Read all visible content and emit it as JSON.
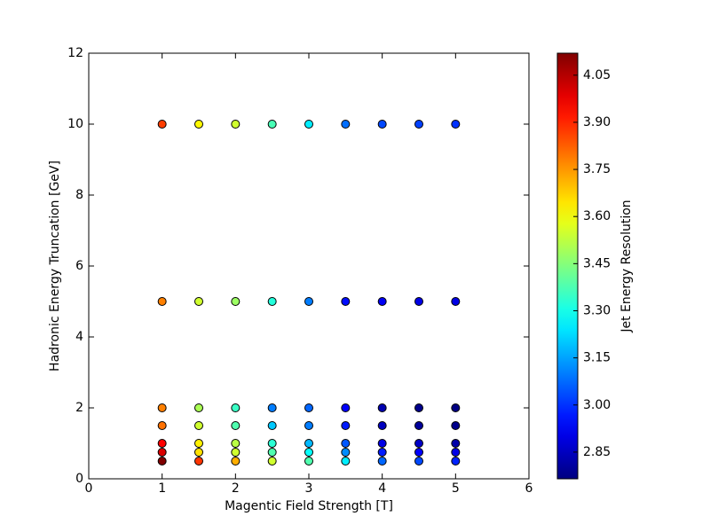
{
  "chart_data": {
    "type": "scatter",
    "xlabel": "Magentic Field Strength [T]",
    "ylabel": "Hadronic Energy Truncation [GeV]",
    "xlim": [
      0,
      6
    ],
    "xticks": [
      0,
      1,
      2,
      3,
      4,
      5,
      6
    ],
    "ylim": [
      0,
      12
    ],
    "yticks": [
      0,
      2,
      4,
      6,
      8,
      10,
      12
    ],
    "colormap": "jet",
    "colorbar": {
      "label": "Jet Energy Resolution",
      "clim": [
        2.765,
        4.12
      ],
      "ticks": [
        2.85,
        {
          "value": 3,
          "label": "3.00"
        },
        3.15,
        {
          "value": 3.3,
          "label": "3.30"
        },
        3.45,
        {
          "value": 3.6,
          "label": "3.60"
        },
        3.75,
        {
          "value": 3.9,
          "label": "3.90"
        },
        4.05
      ]
    },
    "series": [
      {
        "x": [
          1,
          1,
          1,
          1,
          1,
          1,
          1,
          1.5,
          1.5,
          1.5,
          1.5,
          1.5,
          1.5,
          1.5,
          2,
          2,
          2,
          2,
          2,
          2,
          2,
          2.5,
          2.5,
          2.5,
          2.5,
          2.5,
          2.5,
          2.5,
          3,
          3,
          3,
          3,
          3,
          3,
          3,
          3.5,
          3.5,
          3.5,
          3.5,
          3.5,
          3.5,
          3.5,
          4,
          4,
          4,
          4,
          4,
          4,
          4,
          4.5,
          4.5,
          4.5,
          4.5,
          4.5,
          4.5,
          4.5,
          5,
          5,
          5,
          5,
          5,
          5,
          5
        ],
        "y": [
          0.5,
          0.75,
          1,
          1.5,
          2,
          5,
          10,
          0.5,
          0.75,
          1,
          1.5,
          2,
          5,
          10,
          0.5,
          0.75,
          1,
          1.5,
          2,
          5,
          10,
          0.5,
          0.75,
          1,
          1.5,
          2,
          5,
          10,
          0.5,
          0.75,
          1,
          1.5,
          2,
          5,
          10,
          0.5,
          0.75,
          1,
          1.5,
          2,
          5,
          10,
          0.5,
          0.75,
          1,
          1.5,
          2,
          5,
          10,
          0.5,
          0.75,
          1,
          1.5,
          2,
          5,
          10,
          0.5,
          0.75,
          1,
          1.5,
          2,
          5,
          10
        ],
        "c": [
          4.12,
          4.0,
          3.95,
          3.8,
          3.78,
          3.78,
          3.87,
          3.88,
          3.65,
          3.63,
          3.55,
          3.5,
          3.55,
          3.62,
          3.72,
          3.55,
          3.52,
          3.38,
          3.35,
          3.48,
          3.55,
          3.55,
          3.38,
          3.33,
          3.2,
          3.1,
          3.32,
          3.37,
          3.38,
          3.28,
          3.18,
          3.1,
          3.07,
          3.1,
          3.25,
          3.25,
          3.12,
          3.05,
          2.97,
          2.93,
          2.95,
          3.08,
          3.07,
          2.97,
          2.9,
          2.85,
          2.83,
          2.92,
          3.03,
          3.03,
          2.93,
          2.86,
          2.8,
          2.78,
          2.9,
          3.02,
          2.98,
          2.9,
          2.82,
          2.78,
          2.77,
          2.9,
          3.0
        ]
      }
    ]
  }
}
